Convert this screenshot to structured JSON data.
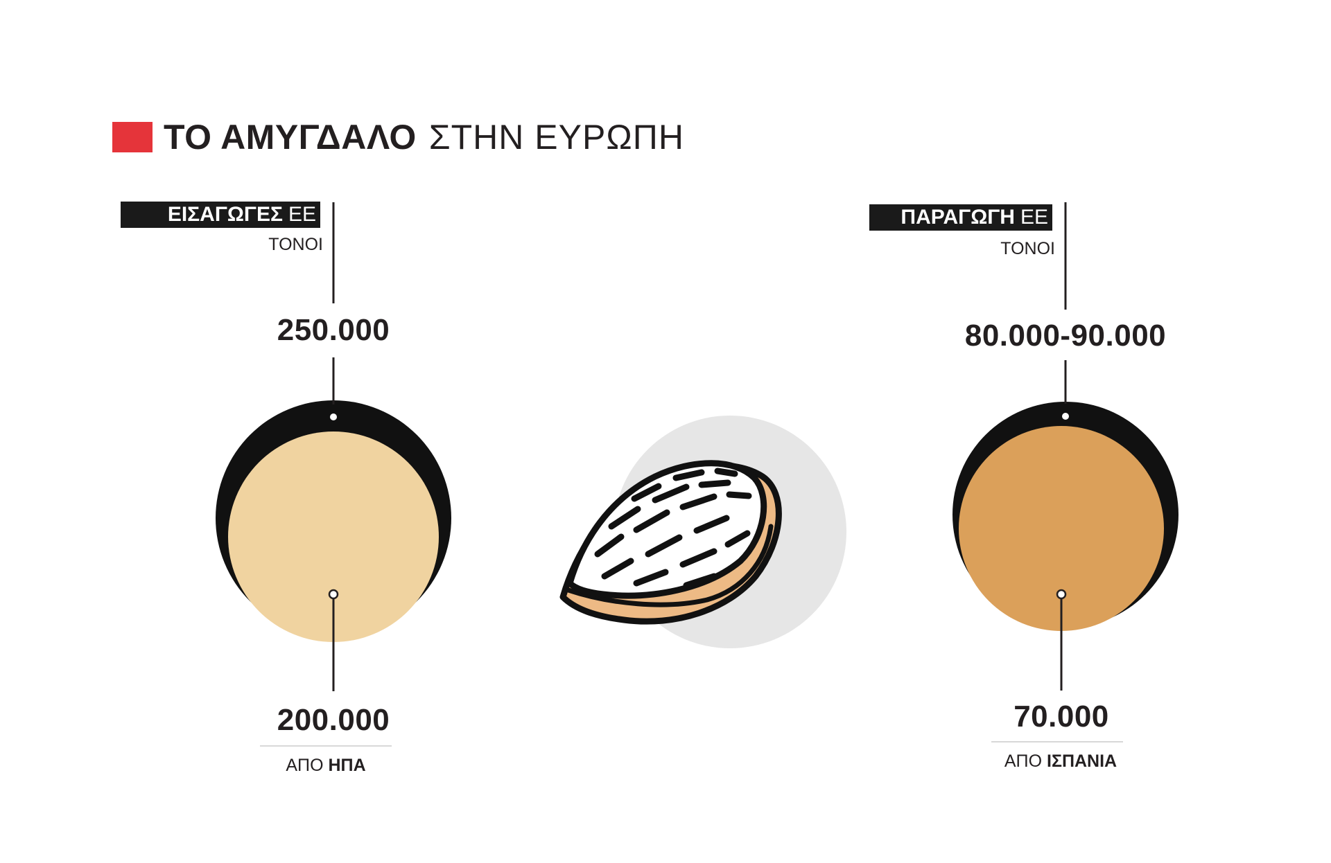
{
  "title": {
    "bold": "ΤΟ ΑΜΥΓΔΑΛΟ",
    "light": "ΣΤΗΝ ΕΥΡΩΠΗ"
  },
  "colors": {
    "accent": "#e5343a",
    "imports_fill": "#f0d3a0",
    "production_fill": "#dba05a",
    "outer_ring": "#111111",
    "almond_shell": "#edba85",
    "almond_circle": "#e6e6e6"
  },
  "imports": {
    "label_bold": "ΕΙΣΑΓΩΓΕΣ",
    "label_light": "ΕΕ",
    "unit": "ΤΟΝΟΙ",
    "total": "250.000",
    "sub_value": "200.000",
    "source_prefix": "ΑΠΟ",
    "source_country": "ΗΠΑ"
  },
  "production": {
    "label_bold": "ΠΑΡΑΓΩΓΗ",
    "label_light": "ΕΕ",
    "unit": "ΤΟΝΟΙ",
    "total": "80.000-90.000",
    "sub_value": "70.000",
    "source_prefix": "ΑΠΟ",
    "source_country": "ΙΣΠΑΝΙΑ"
  },
  "center_icon": "almond-icon"
}
